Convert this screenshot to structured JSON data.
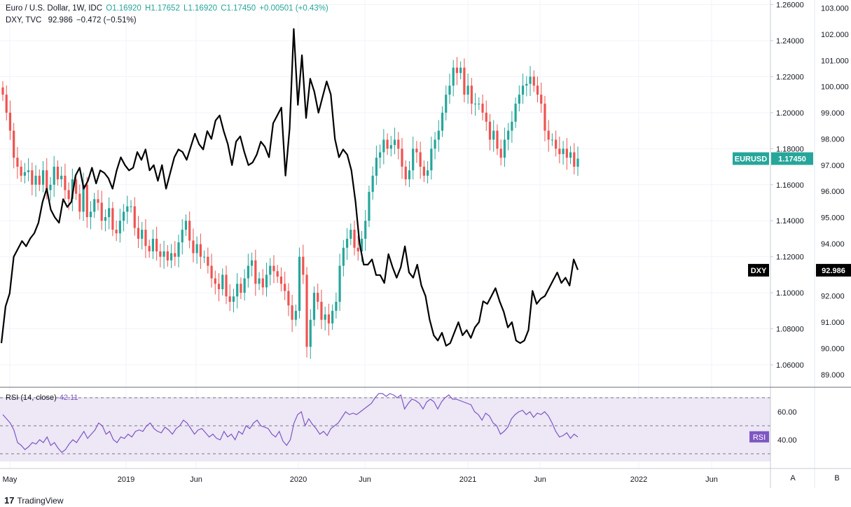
{
  "legend_eurusd": {
    "symbol": "Euro / U.S. Dollar, 1W, IDC",
    "open": "O1.16920",
    "high": "H1.17652",
    "low": "L1.16920",
    "close": "C1.17450",
    "change": "+0.00501 (+0.43%)"
  },
  "legend_dxy": {
    "symbol": "DXY, TVC",
    "value": "92.986",
    "change": "−0.472 (−0.51%)"
  },
  "rsi_legend": {
    "label": "RSI (14, close)",
    "value": "42.11"
  },
  "badges": {
    "eurusd_name": "EURUSD",
    "eurusd_value": "1.17450",
    "dxy_name": "DXY",
    "dxy_value": "92.986",
    "rsi_name": "RSI"
  },
  "scale_buttons": {
    "auto": "A",
    "log": "B"
  },
  "brand": {
    "logo": "17",
    "name": "TradingView"
  },
  "colors": {
    "up": "#26a69a",
    "down": "#ef5350",
    "dxy": "#000000",
    "rsi": "#7e57c2",
    "rsi_band": "#ede7f6",
    "grid": "#f0f3fa"
  },
  "chart_data": {
    "type": "line",
    "x_axis_labels": [
      "May",
      "2019",
      "Jun",
      "2020",
      "Jun",
      "2021",
      "Jun",
      "2022",
      "Jun"
    ],
    "eurusd_axis": {
      "ticks": [
        1.06,
        1.08,
        1.1,
        1.12,
        1.14,
        1.16,
        1.18,
        1.2,
        1.22,
        1.24,
        1.26
      ],
      "range": [
        1.0495,
        1.261
      ]
    },
    "dxy_axis": {
      "ticks": [
        89.0,
        90.0,
        91.0,
        92.0,
        93.0,
        94.0,
        95.0,
        96.0,
        97.0,
        98.0,
        99.0,
        100.0,
        101.0,
        102.0,
        103.0
      ],
      "range": [
        88.65,
        103.2
      ]
    },
    "rsi_axis": {
      "ticks": [
        40.0,
        60.0
      ],
      "range": [
        20,
        76
      ],
      "band": [
        30,
        70
      ]
    },
    "series": [
      {
        "name": "Euro / U.S. Dollar",
        "type": "candlestick",
        "closes": [
          1.21,
          1.2,
          1.19,
          1.175,
          1.17,
          1.165,
          1.167,
          1.168,
          1.16,
          1.165,
          1.16,
          1.168,
          1.157,
          1.16,
          1.17,
          1.163,
          1.165,
          1.157,
          1.152,
          1.163,
          1.155,
          1.145,
          1.16,
          1.142,
          1.145,
          1.152,
          1.15,
          1.14,
          1.142,
          1.147,
          1.135,
          1.133,
          1.14,
          1.145,
          1.148,
          1.148,
          1.136,
          1.13,
          1.135,
          1.126,
          1.123,
          1.13,
          1.123,
          1.12,
          1.123,
          1.118,
          1.122,
          1.12,
          1.128,
          1.135,
          1.14,
          1.129,
          1.122,
          1.127,
          1.12,
          1.12,
          1.115,
          1.108,
          1.105,
          1.102,
          1.11,
          1.098,
          1.095,
          1.098,
          1.105,
          1.1,
          1.108,
          1.115,
          1.118,
          1.105,
          1.108,
          1.103,
          1.11,
          1.115,
          1.112,
          1.109,
          1.105,
          1.101,
          1.093,
          1.085,
          1.09,
          1.12,
          1.11,
          1.07,
          1.085,
          1.1,
          1.095,
          1.085,
          1.088,
          1.083,
          1.09,
          1.095,
          1.115,
          1.125,
          1.13,
          1.135,
          1.125,
          1.123,
          1.13,
          1.14,
          1.156,
          1.165,
          1.175,
          1.178,
          1.185,
          1.18,
          1.182,
          1.185,
          1.18,
          1.17,
          1.163,
          1.168,
          1.18,
          1.178,
          1.17,
          1.165,
          1.168,
          1.18,
          1.185,
          1.19,
          1.2,
          1.21,
          1.215,
          1.225,
          1.222,
          1.225,
          1.21,
          1.215,
          1.205,
          1.205,
          1.205,
          1.2,
          1.195,
          1.185,
          1.19,
          1.18,
          1.175,
          1.185,
          1.19,
          1.195,
          1.205,
          1.21,
          1.215,
          1.216,
          1.22,
          1.215,
          1.21,
          1.205,
          1.19,
          1.185,
          1.185,
          1.18,
          1.177,
          1.18,
          1.175,
          1.178,
          1.17,
          1.1745
        ]
      },
      {
        "name": "DXY",
        "type": "line",
        "values": [
          90.2,
          91.6,
          92.1,
          93.5,
          93.8,
          94.1,
          93.9,
          94.2,
          94.4,
          94.8,
          95.6,
          96.1,
          95.3,
          95.0,
          94.8,
          95.7,
          95.4,
          95.6,
          96.6,
          96.9,
          96.1,
          96.4,
          96.9,
          96.3,
          96.8,
          96.7,
          96.5,
          96.1,
          96.8,
          97.3,
          97.0,
          96.8,
          96.9,
          97.5,
          97.2,
          97.6,
          96.8,
          97.0,
          96.4,
          97.0,
          96.1,
          96.7,
          97.3,
          97.6,
          97.5,
          97.2,
          97.7,
          98.2,
          97.8,
          97.6,
          98.3,
          98.0,
          98.7,
          98.9,
          98.3,
          97.8,
          97.0,
          97.9,
          98.1,
          97.5,
          97.0,
          97.1,
          97.4,
          97.9,
          97.7,
          97.3,
          98.6,
          98.9,
          99.2,
          96.6,
          98.4,
          102.2,
          99.3,
          101.2,
          98.8,
          100.3,
          99.8,
          99.0,
          99.6,
          100.2,
          99.7,
          98.0,
          97.3,
          97.6,
          97.4,
          96.8,
          95.6,
          94.0,
          93.2,
          93.2,
          93.4,
          92.8,
          92.8,
          92.5,
          93.6,
          93.1,
          92.7,
          93.1,
          93.9,
          92.9,
          92.7,
          93.2,
          92.4,
          92.0,
          91.1,
          90.5,
          90.3,
          90.6,
          90.1,
          90.2,
          90.6,
          91.0,
          90.5,
          90.7,
          90.4,
          90.8,
          91.0,
          91.8,
          91.7,
          92.0,
          92.3,
          91.8,
          91.4,
          90.8,
          91.0,
          90.3,
          90.2,
          90.3,
          90.7,
          92.2,
          91.7,
          91.9,
          92.0,
          92.3,
          92.6,
          92.9,
          92.5,
          92.7,
          92.4,
          93.4,
          93.0
        ]
      },
      {
        "name": "RSI (14, close)",
        "type": "line",
        "values": [
          58,
          55,
          52,
          47,
          38,
          36,
          33,
          35,
          38,
          37,
          40,
          38,
          42,
          36,
          38,
          34,
          31,
          33,
          37,
          40,
          38,
          42,
          46,
          41,
          44,
          47,
          52,
          50,
          44,
          46,
          40,
          38,
          42,
          41,
          44,
          42,
          46,
          47,
          46,
          50,
          52,
          48,
          46,
          45,
          49,
          47,
          44,
          48,
          50,
          54,
          52,
          48,
          44,
          47,
          48,
          45,
          42,
          44,
          41,
          40,
          46,
          42,
          44,
          40,
          46,
          44,
          50,
          48,
          52,
          54,
          50,
          49,
          48,
          44,
          42,
          46,
          39,
          36,
          40,
          52,
          58,
          60,
          50,
          55,
          51,
          48,
          44,
          46,
          43,
          48,
          50,
          52,
          56,
          60,
          58,
          59,
          58,
          60,
          62,
          64,
          66,
          70,
          73,
          73,
          71,
          73,
          72,
          70,
          72,
          62,
          66,
          69,
          68,
          66,
          62,
          67,
          69,
          67,
          62,
          67,
          70,
          72,
          69,
          69,
          68,
          67,
          66,
          65,
          60,
          58,
          54,
          59,
          57,
          52,
          50,
          44,
          46,
          49,
          55,
          58,
          60,
          61,
          58,
          60,
          56,
          59,
          58,
          60,
          57,
          52,
          46,
          42,
          43,
          45,
          41,
          44,
          42
        ]
      }
    ]
  }
}
